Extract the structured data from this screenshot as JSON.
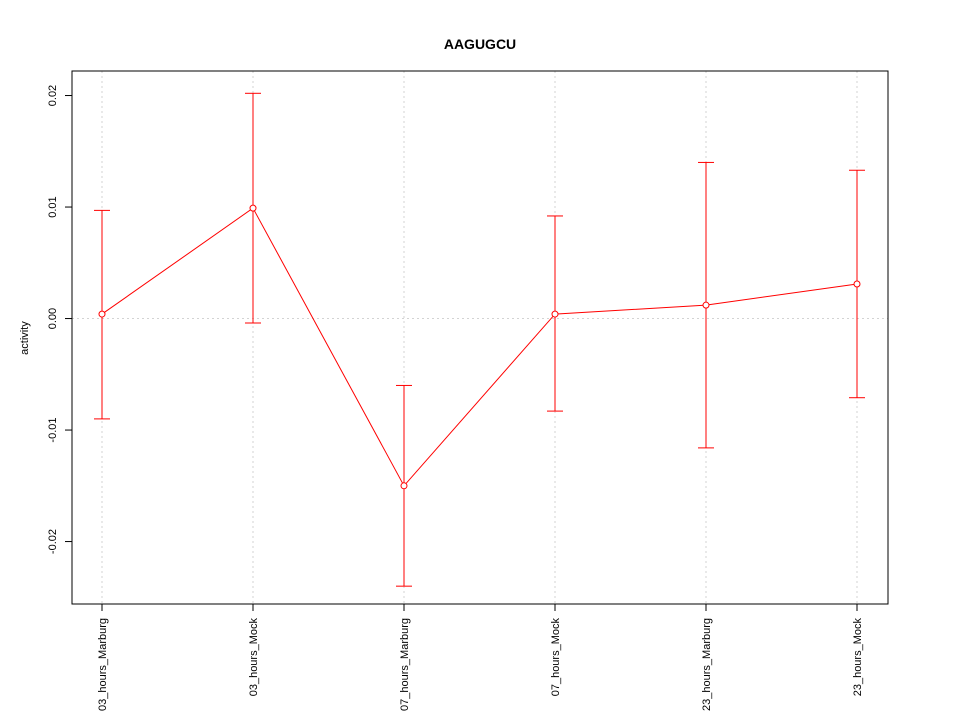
{
  "chart_data": {
    "type": "line",
    "title": "AAGUGCU",
    "xlabel": "",
    "ylabel": "activity",
    "categories": [
      "03_hours_Marburg",
      "03_hours_Mock",
      "07_hours_Marburg",
      "07_hours_Mock",
      "23_hours_Marburg",
      "23_hours_Mock"
    ],
    "series": [
      {
        "values": [
          0.0004,
          0.0099,
          -0.015,
          0.0004,
          0.0012,
          0.0031
        ],
        "lower": [
          -0.009,
          -0.0004,
          -0.024,
          -0.0083,
          -0.0116,
          -0.0071
        ],
        "upper": [
          0.0097,
          0.0202,
          -0.006,
          0.0092,
          0.014,
          0.0133
        ]
      }
    ],
    "y_ticks": [
      -0.02,
      -0.01,
      0.0,
      0.01,
      0.02
    ],
    "y_tick_labels": [
      "-0.02",
      "-0.01",
      "0.00",
      "0.01",
      "0.02"
    ],
    "ylim": [
      -0.0256,
      0.0222
    ],
    "grid": true,
    "colors": {
      "series": "#ff0000",
      "grid": "#d3d3d3",
      "axis": "#000000"
    }
  }
}
